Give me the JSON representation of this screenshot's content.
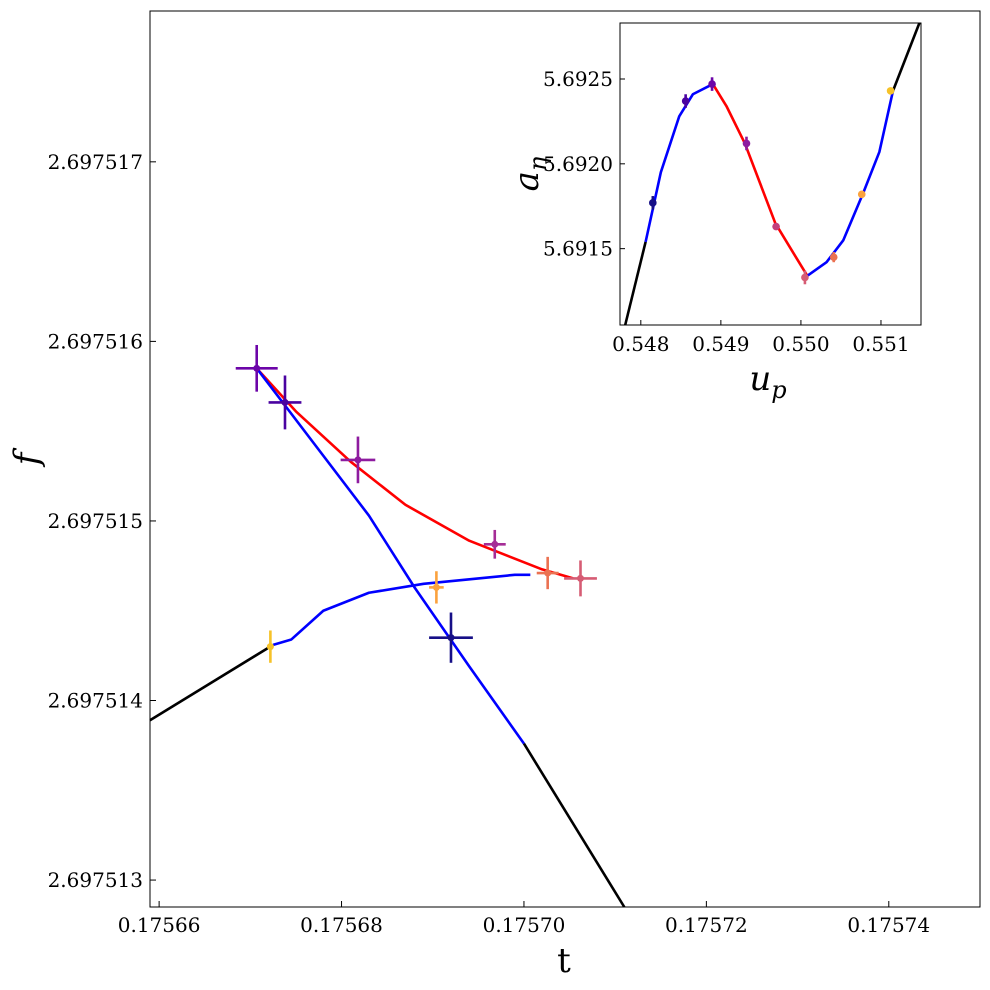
{
  "chart_data": [
    {
      "type": "line",
      "role": "main",
      "xlabel": "t",
      "ylabel": "f",
      "xlim": [
        0.175659,
        0.17575
      ],
      "ylim": [
        2.69751285,
        2.69751784
      ],
      "xticks": [
        0.17566,
        0.17568,
        0.1757,
        0.17572,
        0.17574
      ],
      "xtick_labels": [
        "0.17566",
        "0.17568",
        "0.17570",
        "0.17572",
        "0.17574"
      ],
      "yticks": [
        2.697513,
        2.697514,
        2.697515,
        2.697516,
        2.697517
      ],
      "ytick_labels": [
        "2.697513",
        "2.697514",
        "2.697515",
        "2.697516",
        "2.697517"
      ],
      "grid": false,
      "series": [
        {
          "color": "#000000",
          "points": [
            [
              0.175659,
              2.69751389
            ],
            [
              0.1756725,
              2.69751431
            ]
          ]
        },
        {
          "color": "#0000ff",
          "points": [
            [
              0.1756725,
              2.69751431
            ],
            [
              0.1756745,
              2.69751434
            ],
            [
              0.175678,
              2.6975145
            ],
            [
              0.175683,
              2.6975146
            ],
            [
              0.175689,
              2.69751465
            ],
            [
              0.175695,
              2.69751468
            ],
            [
              0.175699,
              2.6975147
            ],
            [
              0.1757007,
              2.6975147
            ]
          ]
        },
        {
          "color": "#ff0000",
          "points": [
            [
              0.1756707,
              2.69751585
            ],
            [
              0.175675,
              2.69751561
            ],
            [
              0.175681,
              2.69751533
            ],
            [
              0.175687,
              2.69751509
            ],
            [
              0.175694,
              2.69751489
            ],
            [
              0.175702,
              2.69751473
            ],
            [
              0.1757054,
              2.69751468
            ]
          ]
        },
        {
          "color": "#0000ff",
          "points": [
            [
              0.1756707,
              2.69751585
            ],
            [
              0.175677,
              2.69751543
            ],
            [
              0.175683,
              2.69751503
            ],
            [
              0.175688,
              2.69751463
            ],
            [
              0.175694,
              2.69751419
            ],
            [
              0.1757,
              2.69751376
            ]
          ]
        },
        {
          "color": "#000000",
          "points": [
            [
              0.1757,
              2.69751376
            ],
            [
              0.175711,
              2.69751285
            ]
          ]
        }
      ],
      "error_points": [
        {
          "x": 0.1756722,
          "y": 2.6975143,
          "xerr": 0.0,
          "yerr": 9e-08,
          "color": "#f6c228"
        },
        {
          "x": 0.1756904,
          "y": 2.69751463,
          "xerr": 8e-07,
          "yerr": 9e-08,
          "color": "#fba23d"
        },
        {
          "x": 0.175692,
          "y": 2.69751435,
          "xerr": 2.4e-06,
          "yerr": 1.4e-07,
          "color": "#160f87"
        },
        {
          "x": 0.1756968,
          "y": 2.69751487,
          "xerr": 1.2e-06,
          "yerr": 8e-08,
          "color": "#a52d96"
        },
        {
          "x": 0.1757026,
          "y": 2.69751471,
          "xerr": 1.2e-06,
          "yerr": 9e-08,
          "color": "#eb7151"
        },
        {
          "x": 0.1757062,
          "y": 2.69751468,
          "xerr": 1.8e-06,
          "yerr": 1e-07,
          "color": "#d65c74"
        },
        {
          "x": 0.1756707,
          "y": 2.69751585,
          "xerr": 2.3e-06,
          "yerr": 1.3e-07,
          "color": "#6c05a8"
        },
        {
          "x": 0.1756738,
          "y": 2.69751566,
          "xerr": 1.8e-06,
          "yerr": 1.5e-07,
          "color": "#4a02a0"
        },
        {
          "x": 0.1756818,
          "y": 2.69751534,
          "xerr": 1.9e-06,
          "yerr": 1.3e-07,
          "color": "#8e1b9f"
        }
      ]
    },
    {
      "type": "line",
      "role": "inset",
      "xlabel": "u_p",
      "ylabel": "a_η",
      "xlim": [
        0.54774,
        0.5515
      ],
      "ylim": [
        5.69105,
        5.69283
      ],
      "xticks": [
        0.548,
        0.549,
        0.55,
        0.551
      ],
      "xtick_labels": [
        "0.548",
        "0.549",
        "0.550",
        "0.551"
      ],
      "yticks": [
        5.6915,
        5.692,
        5.6925
      ],
      "ytick_labels": [
        "5.6915",
        "5.6920",
        "5.6925"
      ],
      "grid": false,
      "series": [
        {
          "color": "#000000",
          "points": [
            [
              0.547805,
              5.69105
            ],
            [
              0.54806,
              5.69154
            ]
          ]
        },
        {
          "color": "#0000ff",
          "points": [
            [
              0.54806,
              5.69154
            ],
            [
              0.54825,
              5.69195
            ],
            [
              0.54848,
              5.69228
            ],
            [
              0.54865,
              5.69241
            ],
            [
              0.5489,
              5.69247
            ]
          ]
        },
        {
          "color": "#ff0000",
          "points": [
            [
              0.5489,
              5.69247
            ],
            [
              0.54907,
              5.69234
            ],
            [
              0.5493,
              5.69212
            ],
            [
              0.54968,
              5.69165
            ],
            [
              0.54995,
              5.69144
            ],
            [
              0.55008,
              5.69134
            ]
          ]
        },
        {
          "color": "#0000ff",
          "points": [
            [
              0.55008,
              5.69134
            ],
            [
              0.55032,
              5.69142
            ],
            [
              0.55053,
              5.69155
            ],
            [
              0.55078,
              5.69183
            ],
            [
              0.55098,
              5.69207
            ],
            [
              0.55115,
              5.69243
            ]
          ]
        },
        {
          "color": "#000000",
          "points": [
            [
              0.55115,
              5.69243
            ],
            [
              0.55148,
              5.69283
            ]
          ]
        }
      ],
      "error_points": [
        {
          "x": 0.54815,
          "y": 5.69177,
          "yerr": 4e-05,
          "color": "#160f87"
        },
        {
          "x": 0.54856,
          "y": 5.69237,
          "yerr": 4e-05,
          "color": "#4a02a0"
        },
        {
          "x": 0.54889,
          "y": 5.69247,
          "yerr": 4e-05,
          "color": "#6c05a8"
        },
        {
          "x": 0.54932,
          "y": 5.69212,
          "yerr": 4e-05,
          "color": "#8e1b9f"
        },
        {
          "x": 0.54969,
          "y": 5.69163,
          "yerr": 2e-05,
          "color": "#c2407d"
        },
        {
          "x": 0.55005,
          "y": 5.69133,
          "yerr": 4e-05,
          "color": "#d65c74"
        },
        {
          "x": 0.55041,
          "y": 5.69145,
          "yerr": 3e-05,
          "color": "#eb7151"
        },
        {
          "x": 0.55076,
          "y": 5.69182,
          "yerr": 2e-05,
          "color": "#fba23d"
        },
        {
          "x": 0.55112,
          "y": 5.69243,
          "yerr": 1e-05,
          "color": "#f6c228"
        }
      ]
    }
  ]
}
